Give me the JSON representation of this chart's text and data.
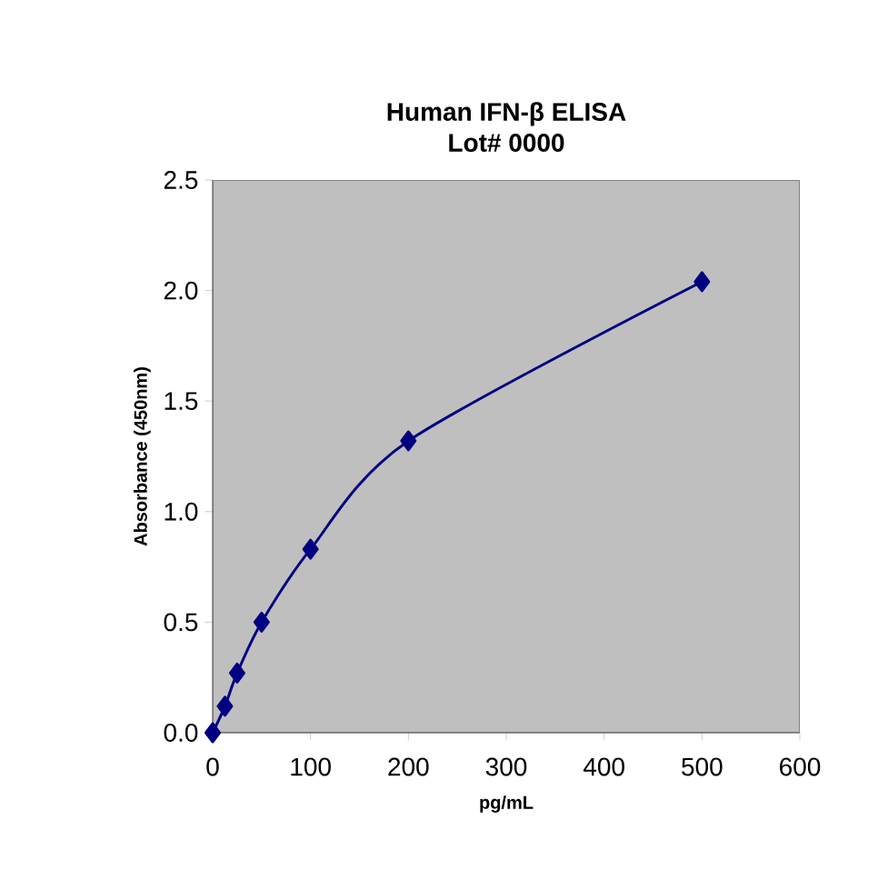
{
  "chart_data": {
    "type": "line",
    "title": "Human IFN-β ELISA",
    "subtitle": "Lot# 0000",
    "xlabel": "pg/mL",
    "ylabel": "Absorbance (450nm)",
    "x": [
      0,
      12.5,
      25,
      50,
      100,
      200,
      500
    ],
    "series": [
      {
        "color": "#000080",
        "values": [
          0.0,
          0.12,
          0.27,
          0.5,
          0.83,
          1.32,
          2.04
        ]
      }
    ],
    "xlim": [
      0,
      600
    ],
    "xticks": [
      0,
      100,
      200,
      300,
      400,
      500,
      600
    ],
    "ylim": [
      0,
      2.5
    ],
    "yticks": [
      {
        "value": 0,
        "label": "0.0"
      },
      {
        "value": 0.5,
        "label": "0.5"
      },
      {
        "value": 1,
        "label": "1.0"
      },
      {
        "value": 1.5,
        "label": "1.5"
      },
      {
        "value": 2,
        "label": "2.0"
      },
      {
        "value": 2.5,
        "label": "2.5"
      }
    ],
    "marker": "diamond",
    "line_style": "solid",
    "grid": false
  }
}
